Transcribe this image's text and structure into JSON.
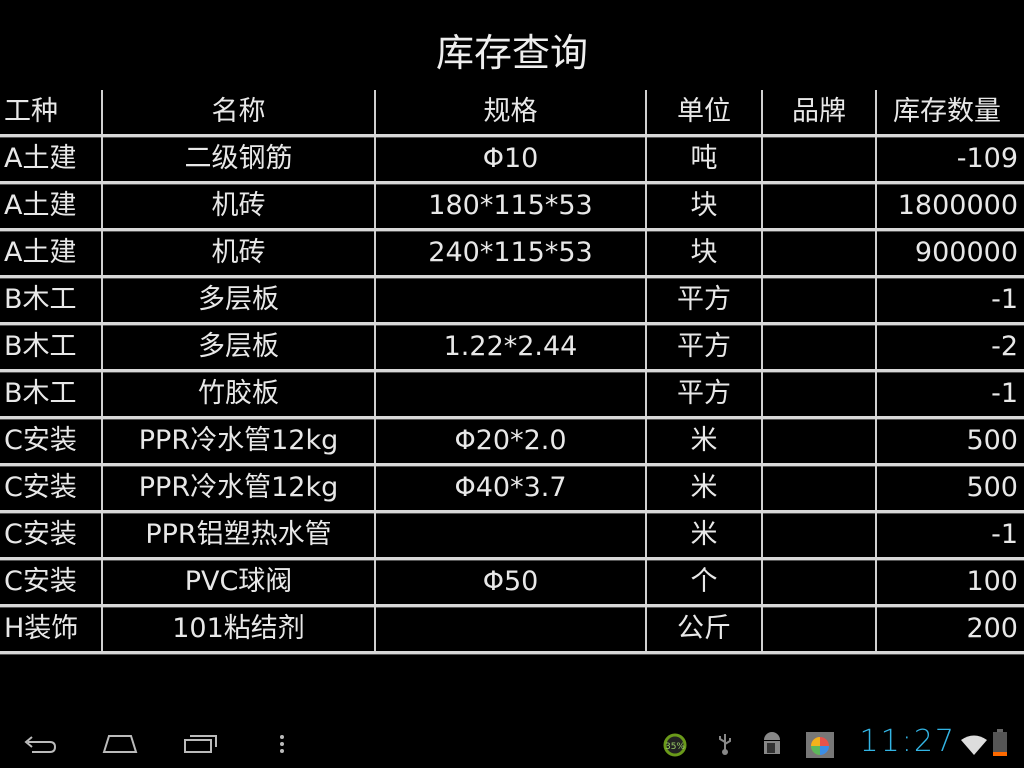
{
  "title": "库存查询",
  "headers": [
    "工种",
    "名称",
    "规格",
    "单位",
    "品牌",
    "库存数量"
  ],
  "rows": [
    [
      "A土建",
      "二级钢筋",
      "Φ10",
      "吨",
      "",
      "-109"
    ],
    [
      "A土建",
      "机砖",
      "180*115*53",
      "块",
      "",
      "1800000"
    ],
    [
      "A土建",
      "机砖",
      "240*115*53",
      "块",
      "",
      "900000"
    ],
    [
      "B木工",
      "多层板",
      "",
      "平方",
      "",
      "-1"
    ],
    [
      "B木工",
      "多层板",
      "1.22*2.44",
      "平方",
      "",
      "-2"
    ],
    [
      "B木工",
      "竹胶板",
      "",
      "平方",
      "",
      "-1"
    ],
    [
      "C安装",
      "PPR冷水管12kg",
      "Φ20*2.0",
      "米",
      "",
      "500"
    ],
    [
      "C安装",
      "PPR冷水管12kg",
      "Φ40*3.7",
      "米",
      "",
      "500"
    ],
    [
      "C安装",
      "PPR铝塑热水管",
      "",
      "米",
      "",
      "-1"
    ],
    [
      "C安装",
      "PVC球阀",
      "Φ50",
      "个",
      "",
      "100"
    ],
    [
      "H装饰",
      "101粘结剂",
      "",
      "公斤",
      "",
      "200"
    ]
  ],
  "status": {
    "clock": "11:27",
    "battery_widget": "35%",
    "clock_color": "#33b5e5",
    "battery_color": "#ff6a00"
  },
  "nav": {
    "back": "back-icon",
    "home": "home-icon",
    "recents": "recents-icon",
    "menu": "menu-icon"
  }
}
